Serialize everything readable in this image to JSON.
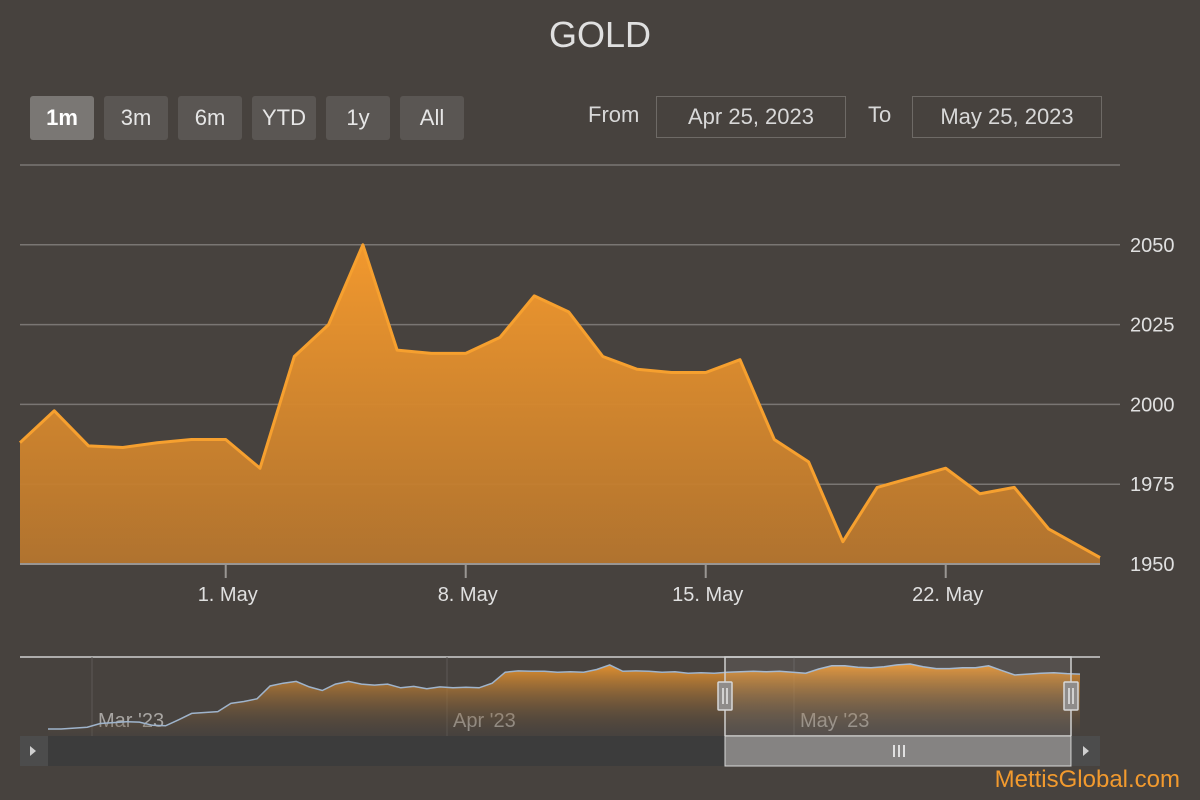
{
  "title": "GOLD",
  "range_selector": {
    "buttons": [
      "1m",
      "3m",
      "6m",
      "YTD",
      "1y",
      "All"
    ],
    "active": "1m",
    "from_label": "From",
    "to_label": "To",
    "from_value": "Apr 25, 2023",
    "to_value": "May 25, 2023"
  },
  "colors": {
    "background": "#47423e",
    "area_line": "#f6a02f",
    "area_fill_top": "#f59a2d",
    "area_fill_bottom": "#b5752e",
    "grid": "#7a7673",
    "navigator_line": "#9fb4cc",
    "watermark": "#f29a2e"
  },
  "chart_data": {
    "type": "area",
    "title": "GOLD",
    "xlabel": "",
    "ylabel": "",
    "ylim": [
      1950,
      2075
    ],
    "y_ticks": [
      1950,
      1975,
      2000,
      2025,
      2050
    ],
    "x_tick_labels": [
      "1. May",
      "8. May",
      "15. May",
      "22. May"
    ],
    "x_tick_days": [
      6,
      13,
      20,
      27
    ],
    "x_range": [
      0,
      31.5
    ],
    "grid": true,
    "legend": "none",
    "series": [
      {
        "x": [
          0,
          1,
          2,
          3,
          4,
          5,
          6,
          7,
          8,
          9,
          10,
          11,
          12,
          13,
          14,
          15,
          16,
          17,
          18,
          19,
          20,
          21,
          22,
          23,
          24,
          25,
          26,
          27,
          28,
          29,
          30,
          31.5
        ],
        "values": [
          1988,
          1998,
          1987,
          1986.5,
          1988,
          1989,
          1989,
          1980,
          2015,
          2025,
          2050,
          2017,
          2016,
          2016,
          2021,
          2034,
          2029,
          2015,
          2011,
          2010,
          2010,
          2014,
          1989,
          1982,
          1957,
          1974,
          1977,
          1980,
          1972,
          1974,
          1961,
          1952
        ]
      }
    ]
  },
  "navigator": {
    "labels": [
      "Mar '23",
      "Apr '23",
      "May '23"
    ],
    "values": [
      1812,
      1812,
      1814,
      1816,
      1824,
      1826,
      1828,
      1827,
      1820,
      1819,
      1832,
      1846,
      1848,
      1850,
      1868,
      1872,
      1878,
      1906,
      1912,
      1916,
      1904,
      1896,
      1910,
      1916,
      1910,
      1908,
      1910,
      1902,
      1905,
      1900,
      1904,
      1902,
      1903,
      1902,
      1912,
      1936,
      1939,
      1938,
      1938,
      1936,
      1937,
      1936,
      1942,
      1952,
      1938,
      1939,
      1938,
      1936,
      1937,
      1934,
      1935,
      1934,
      1936,
      1937,
      1938,
      1937,
      1938,
      1936,
      1934,
      1943,
      1950,
      1950,
      1947,
      1946,
      1948,
      1952,
      1954,
      1948,
      1944,
      1944,
      1946,
      1946,
      1950,
      1940,
      1930,
      1932,
      1934,
      1935,
      1933,
      1932
    ]
  },
  "watermark": "MettisGlobal.com"
}
